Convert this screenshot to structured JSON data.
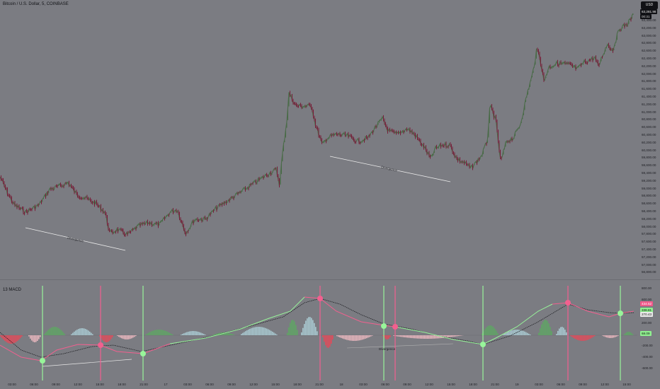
{
  "header": {
    "symbol_title": "Bitcoin / U.S. Dollar, 5, COINBASE",
    "currency": "USD"
  },
  "indicator": {
    "title": "13 MACD"
  },
  "price_axis": {
    "labels": [
      "63,400.00",
      "63,200.00",
      "63,000.00",
      "62,800.00",
      "62,600.00",
      "62,400.00",
      "62,200.00",
      "62,000.00",
      "61,800.00",
      "61,600.00",
      "61,400.00",
      "61,200.00",
      "61,000.00",
      "60,800.00",
      "60,600.00",
      "60,400.00",
      "60,200.00",
      "60,000.00",
      "59,800.00",
      "59,600.00",
      "59,400.00",
      "59,200.00",
      "59,000.00",
      "58,800.00",
      "58,600.00",
      "58,400.00",
      "58,200.00",
      "58,000.00",
      "57,800.00",
      "57,600.00",
      "57,400.00",
      "57,200.00",
      "57,000.00",
      "56,800.00"
    ],
    "current_price": "63,281.98",
    "current_time": "00:31"
  },
  "macd_axis": {
    "labels": [
      "800.00",
      "600.00",
      "400.00",
      "200.00",
      "0.00",
      "-200.00",
      "-400.00",
      "-600.00"
    ],
    "tags": [
      {
        "text": "434.52",
        "bg": "#f0598a",
        "fg": "#ffffff"
      },
      {
        "text": "338.81",
        "bg": "#8ff08f",
        "fg": "#111111"
      },
      {
        "text": "270.43",
        "bg": "#e8e8e8",
        "fg": "#111111"
      },
      {
        "text": "68.09",
        "bg": "#8ff08f",
        "fg": "#111111"
      }
    ]
  },
  "time_axis": [
    "03:00",
    "06:00",
    "09:00",
    "12:00",
    "15:00",
    "18:00",
    "21:00",
    "17",
    "03:00",
    "06:00",
    "09:00",
    "12:00",
    "15:00",
    "18:00",
    "21:00",
    "18",
    "03:00",
    "06:00",
    "09:00",
    "12:00",
    "15:00",
    "18:00",
    "21:00",
    "19",
    "03:00",
    "06:00",
    "09:00",
    "12:00",
    "15:00"
  ],
  "annotations": {
    "price_divergence": "Divergence",
    "macd_divergence": "Divergence"
  },
  "colors": {
    "background": "#7b7c82",
    "candle_up": "#4a6b48",
    "candle_down": "#7a1f3c",
    "bull_signal": "#98f59a",
    "bear_signal": "#f2608f",
    "histogram_up_strong": "#5fa564",
    "histogram_up_weak": "#a8c8d0",
    "histogram_down_strong": "#e04b5a",
    "histogram_down_weak": "#e6b5bc"
  }
}
